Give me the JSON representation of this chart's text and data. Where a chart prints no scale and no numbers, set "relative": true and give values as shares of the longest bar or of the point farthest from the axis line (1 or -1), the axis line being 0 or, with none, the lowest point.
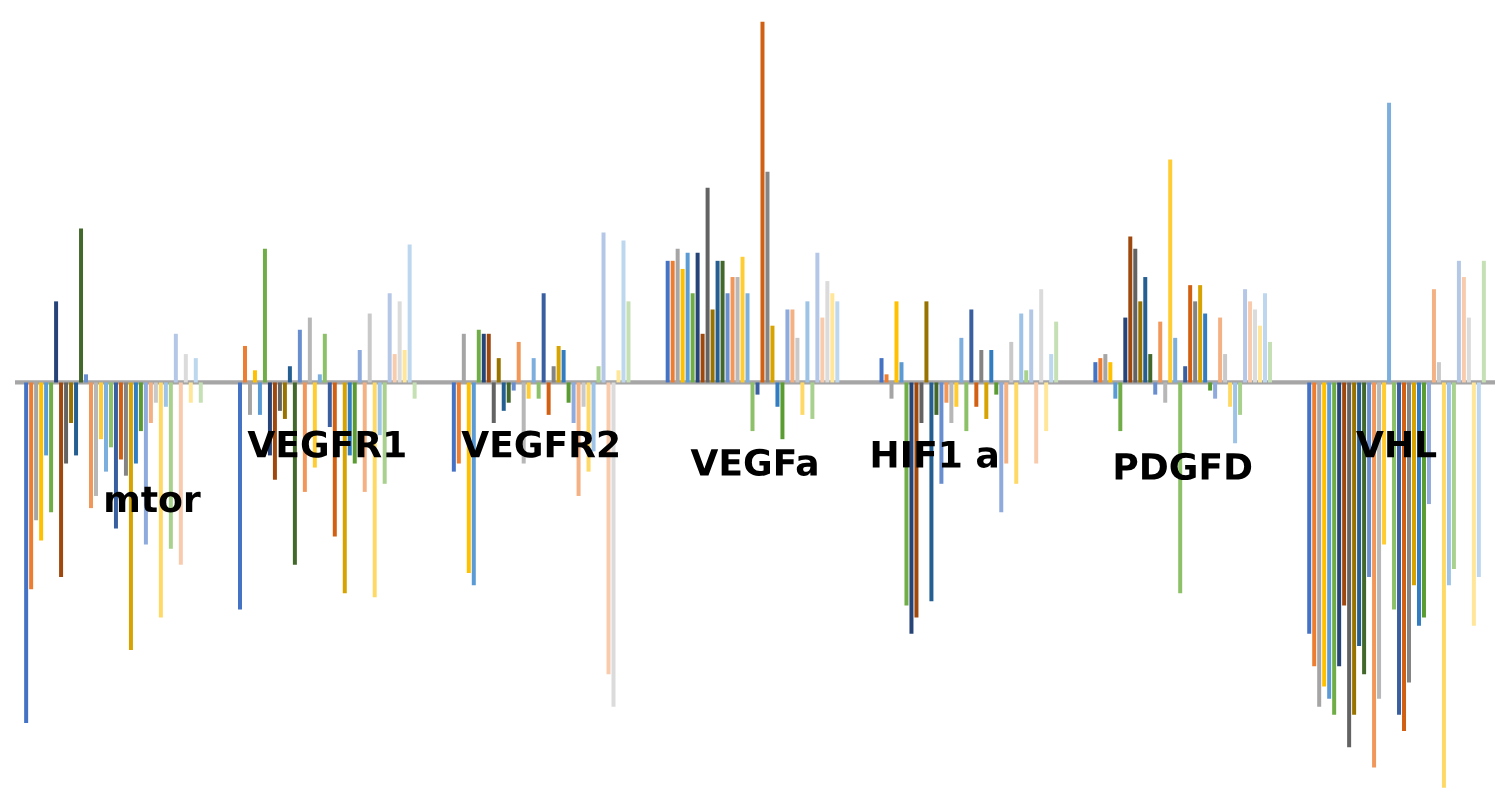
{
  "chart_data": {
    "type": "bar",
    "relative": true,
    "categories": [
      "mtor",
      "VEGFR1",
      "VEGFR2",
      "VEGFa",
      "HIF1 a",
      "PDGFD",
      "VHL"
    ],
    "series": [
      {
        "color": "#4472c4",
        "values": [
          -0.84,
          -0.56,
          -0.22,
          0.3,
          0.06,
          0.05,
          -0.62
        ]
      },
      {
        "color": "#ed7d31",
        "values": [
          -0.51,
          0.09,
          -0.2,
          0.3,
          0.02,
          0.06,
          -0.7
        ]
      },
      {
        "color": "#a5a5a5",
        "values": [
          -0.34,
          -0.08,
          0.12,
          0.33,
          -0.04,
          0.07,
          -0.8
        ]
      },
      {
        "color": "#ffc000",
        "values": [
          -0.39,
          0.03,
          -0.47,
          0.28,
          0.2,
          0.05,
          -0.75
        ]
      },
      {
        "color": "#5b9bd5",
        "values": [
          -0.18,
          -0.08,
          -0.5,
          0.32,
          0.05,
          -0.04,
          -0.78
        ]
      },
      {
        "color": "#70ad47",
        "values": [
          -0.32,
          0.33,
          0.13,
          0.22,
          -0.55,
          -0.12,
          -0.82
        ]
      },
      {
        "color": "#264478",
        "values": [
          0.2,
          -0.18,
          0.12,
          0.32,
          -0.62,
          0.16,
          -0.7
        ]
      },
      {
        "color": "#9e480e",
        "values": [
          -0.48,
          -0.24,
          0.12,
          0.12,
          -0.58,
          0.36,
          -0.55
        ]
      },
      {
        "color": "#636363",
        "values": [
          -0.2,
          -0.07,
          -0.1,
          0.48,
          -0.1,
          0.33,
          -0.9
        ]
      },
      {
        "color": "#997300",
        "values": [
          -0.1,
          -0.09,
          0.06,
          0.18,
          0.2,
          0.2,
          -0.82
        ]
      },
      {
        "color": "#255e91",
        "values": [
          -0.18,
          0.04,
          -0.07,
          0.3,
          -0.54,
          0.26,
          -0.65
        ]
      },
      {
        "color": "#43682b",
        "values": [
          0.38,
          -0.45,
          -0.05,
          0.3,
          -0.08,
          0.07,
          -0.72
        ]
      },
      {
        "color": "#698ed0",
        "values": [
          0.02,
          0.13,
          -0.02,
          0.22,
          -0.25,
          -0.03,
          -0.48
        ]
      },
      {
        "color": "#f1975a",
        "values": [
          -0.31,
          -0.27,
          0.1,
          0.26,
          -0.05,
          0.15,
          -0.95
        ]
      },
      {
        "color": "#b7b7b7",
        "values": [
          -0.28,
          0.16,
          -0.2,
          0.26,
          -0.1,
          -0.05,
          -0.78
        ]
      },
      {
        "color": "#ffcd33",
        "values": [
          -0.14,
          -0.21,
          -0.04,
          0.31,
          -0.06,
          0.55,
          -0.4
        ]
      },
      {
        "color": "#7cafdd",
        "values": [
          -0.22,
          0.02,
          0.06,
          0.22,
          0.11,
          0.11,
          0.69
        ]
      },
      {
        "color": "#8cc168",
        "values": [
          -0.16,
          0.12,
          -0.04,
          -0.12,
          -0.12,
          -0.52,
          -0.56
        ]
      },
      {
        "color": "#3a5fa0",
        "values": [
          -0.36,
          -0.11,
          0.22,
          -0.03,
          0.18,
          0.04,
          -0.82
        ]
      },
      {
        "color": "#d26012",
        "values": [
          -0.19,
          -0.38,
          -0.08,
          0.89,
          -0.06,
          0.24,
          -0.86
        ]
      },
      {
        "color": "#848484",
        "values": [
          -0.23,
          0.0,
          0.04,
          0.52,
          0.08,
          0.2,
          -0.74
        ]
      },
      {
        "color": "#d6a300",
        "values": [
          -0.66,
          -0.52,
          0.09,
          0.14,
          -0.09,
          0.24,
          -0.5
        ]
      },
      {
        "color": "#327dc2",
        "values": [
          -0.2,
          -0.18,
          0.08,
          -0.06,
          0.08,
          0.17,
          -0.6
        ]
      },
      {
        "color": "#5a9c32",
        "values": [
          -0.12,
          -0.2,
          -0.05,
          -0.14,
          -0.03,
          -0.02,
          -0.58
        ]
      },
      {
        "color": "#8faadc",
        "values": [
          -0.4,
          0.08,
          -0.1,
          0.18,
          -0.32,
          -0.04,
          -0.3
        ]
      },
      {
        "color": "#f4b183",
        "values": [
          -0.1,
          -0.27,
          -0.28,
          0.18,
          -0.2,
          0.16,
          0.23
        ]
      },
      {
        "color": "#c9c9c9",
        "values": [
          -0.05,
          0.17,
          -0.06,
          0.11,
          0.1,
          0.07,
          0.05
        ]
      },
      {
        "color": "#ffd966",
        "values": [
          -0.58,
          -0.53,
          -0.22,
          -0.08,
          -0.25,
          -0.06,
          -1
        ]
      },
      {
        "color": "#9dc3e6",
        "values": [
          -0.06,
          -0.13,
          -0.17,
          0.2,
          0.17,
          -0.15,
          -0.5
        ]
      },
      {
        "color": "#a9d18e",
        "values": [
          -0.41,
          -0.25,
          0.04,
          -0.09,
          0.03,
          -0.08,
          -0.46
        ]
      },
      {
        "color": "#b4c7e7",
        "values": [
          0.12,
          0.22,
          0.37,
          0.32,
          0.18,
          0.23,
          0.3
        ]
      },
      {
        "color": "#f8cbad",
        "values": [
          -0.45,
          0.07,
          -0.72,
          0.16,
          -0.2,
          0.2,
          0.26
        ]
      },
      {
        "color": "#dbdbdb",
        "values": [
          0.07,
          0.2,
          -0.8,
          0.25,
          0.23,
          0.18,
          0.16
        ]
      },
      {
        "color": "#ffe699",
        "values": [
          -0.05,
          0.08,
          0.03,
          0.22,
          -0.12,
          0.14,
          -0.6
        ]
      },
      {
        "color": "#bdd7ee",
        "values": [
          0.06,
          0.34,
          0.35,
          0.2,
          0.07,
          0.22,
          -0.48
        ]
      },
      {
        "color": "#c5e0b4",
        "values": [
          -0.05,
          -0.04,
          0.2,
          0.0,
          0.15,
          0.1,
          0.3
        ]
      }
    ]
  }
}
